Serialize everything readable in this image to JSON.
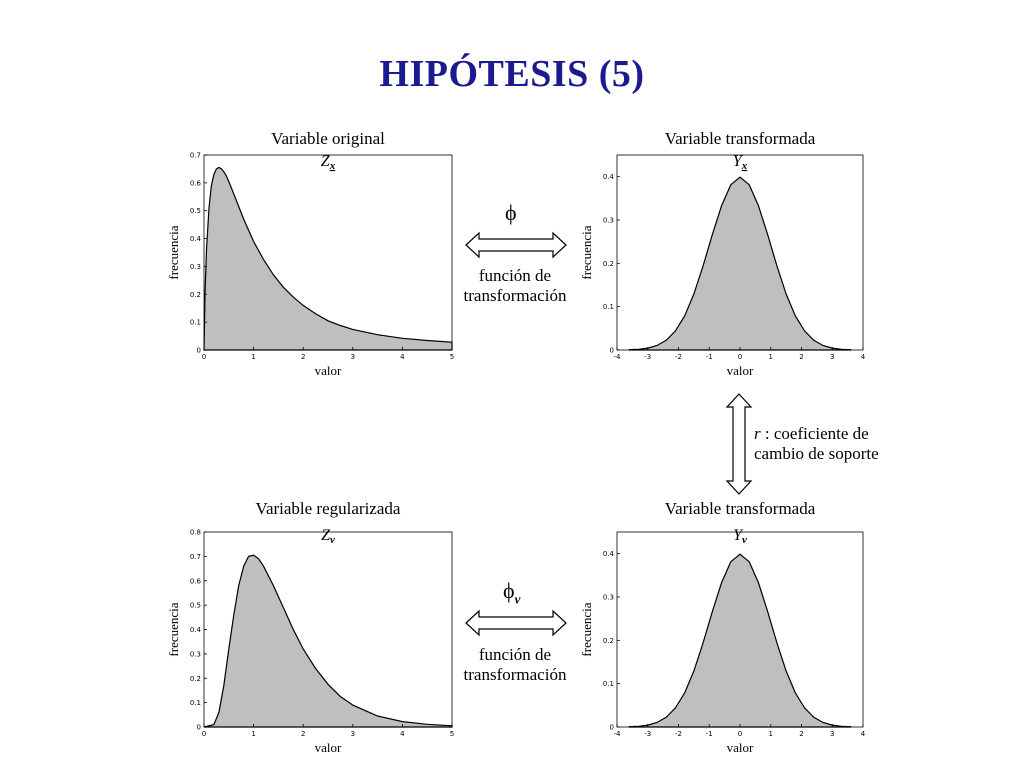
{
  "title": "HIPÓTESIS (5)",
  "chart_data": [
    {
      "type": "area",
      "id": "top-left",
      "title": "Variable original",
      "subtitle": "Zx",
      "xlabel": "valor",
      "ylabel": "frecuencia",
      "xlim": [
        0,
        5
      ],
      "ylim": [
        0,
        0.7
      ],
      "xticks": [
        0,
        1,
        2,
        3,
        4,
        5
      ],
      "yticks": [
        0,
        0.1,
        0.2,
        0.3,
        0.4,
        0.5,
        0.6,
        0.7
      ],
      "x": [
        0,
        0.02,
        0.05,
        0.1,
        0.15,
        0.2,
        0.25,
        0.3,
        0.35,
        0.4,
        0.45,
        0.5,
        0.6,
        0.7,
        0.8,
        0.9,
        1.0,
        1.2,
        1.4,
        1.6,
        1.8,
        2.0,
        2.25,
        2.5,
        2.75,
        3.0,
        3.5,
        4.0,
        4.5,
        5.0
      ],
      "y": [
        0,
        0.2,
        0.36,
        0.51,
        0.59,
        0.63,
        0.65,
        0.655,
        0.65,
        0.64,
        0.625,
        0.605,
        0.56,
        0.515,
        0.47,
        0.43,
        0.39,
        0.325,
        0.27,
        0.225,
        0.19,
        0.16,
        0.13,
        0.105,
        0.088,
        0.074,
        0.055,
        0.042,
        0.034,
        0.028
      ]
    },
    {
      "type": "area",
      "id": "top-right",
      "title": "Variable transformada",
      "subtitle": "Yx",
      "xlabel": "valor",
      "ylabel": "frecuencia",
      "xlim": [
        -4,
        4
      ],
      "ylim": [
        0,
        0.45
      ],
      "xticks": [
        -4,
        -3,
        -2,
        -1,
        0,
        1,
        2,
        3,
        4
      ],
      "yticks": [
        0,
        0.1,
        0.2,
        0.3,
        0.4
      ],
      "x": [
        -3.6,
        -3.3,
        -3.0,
        -2.7,
        -2.4,
        -2.1,
        -1.8,
        -1.5,
        -1.2,
        -0.9,
        -0.6,
        -0.3,
        0,
        0.3,
        0.6,
        0.9,
        1.2,
        1.5,
        1.8,
        2.1,
        2.4,
        2.7,
        3.0,
        3.3,
        3.6
      ],
      "y": [
        0.0006,
        0.0017,
        0.0044,
        0.0104,
        0.0224,
        0.044,
        0.079,
        0.1295,
        0.1942,
        0.2661,
        0.3332,
        0.3814,
        0.3989,
        0.3814,
        0.3332,
        0.2661,
        0.1942,
        0.1295,
        0.079,
        0.044,
        0.0224,
        0.0104,
        0.0044,
        0.0017,
        0.0006
      ]
    },
    {
      "type": "area",
      "id": "bottom-left",
      "title": "Variable regularizada",
      "subtitle": "Zv",
      "xlabel": "valor",
      "ylabel": "frecuencia",
      "xlim": [
        0,
        5
      ],
      "ylim": [
        0,
        0.8
      ],
      "xticks": [
        0,
        1,
        2,
        3,
        4,
        5
      ],
      "yticks": [
        0,
        0.1,
        0.2,
        0.3,
        0.4,
        0.5,
        0.6,
        0.7,
        0.8
      ],
      "x": [
        0,
        0.2,
        0.3,
        0.4,
        0.5,
        0.6,
        0.7,
        0.8,
        0.9,
        1.0,
        1.1,
        1.2,
        1.4,
        1.6,
        1.8,
        2.0,
        2.25,
        2.5,
        2.75,
        3.0,
        3.5,
        4.0,
        4.5,
        5.0
      ],
      "y": [
        0,
        0.01,
        0.06,
        0.17,
        0.32,
        0.46,
        0.58,
        0.66,
        0.7,
        0.705,
        0.69,
        0.66,
        0.58,
        0.49,
        0.4,
        0.32,
        0.24,
        0.175,
        0.125,
        0.09,
        0.045,
        0.022,
        0.011,
        0.005
      ]
    },
    {
      "type": "area",
      "id": "bottom-right",
      "title": "Variable transformada",
      "subtitle": "Yv",
      "xlabel": "valor",
      "ylabel": "frecuencia",
      "xlim": [
        -4,
        4
      ],
      "ylim": [
        0,
        0.45
      ],
      "xticks": [
        -4,
        -3,
        -2,
        -1,
        0,
        1,
        2,
        3,
        4
      ],
      "yticks": [
        0,
        0.1,
        0.2,
        0.3,
        0.4
      ],
      "x": [
        -3.6,
        -3.3,
        -3.0,
        -2.7,
        -2.4,
        -2.1,
        -1.8,
        -1.5,
        -1.2,
        -0.9,
        -0.6,
        -0.3,
        0,
        0.3,
        0.6,
        0.9,
        1.2,
        1.5,
        1.8,
        2.1,
        2.4,
        2.7,
        3.0,
        3.3,
        3.6
      ],
      "y": [
        0.0006,
        0.0017,
        0.0044,
        0.0104,
        0.0224,
        0.044,
        0.079,
        0.1295,
        0.1942,
        0.2661,
        0.3332,
        0.3814,
        0.3989,
        0.3814,
        0.3332,
        0.2661,
        0.1942,
        0.1295,
        0.079,
        0.044,
        0.0224,
        0.0104,
        0.0044,
        0.0017,
        0.0006
      ]
    }
  ],
  "annotations": {
    "top_symbol": "ϕ",
    "top_label_line1": "función de",
    "top_label_line2": "transformación",
    "bottom_symbol": "ϕ",
    "bottom_symbol_sub": "v",
    "bottom_label_line1": "función de",
    "bottom_label_line2": "transformación",
    "support_symbol": "r",
    "support_line1": " : coeficiente de",
    "support_line2": "cambio de soporte"
  }
}
